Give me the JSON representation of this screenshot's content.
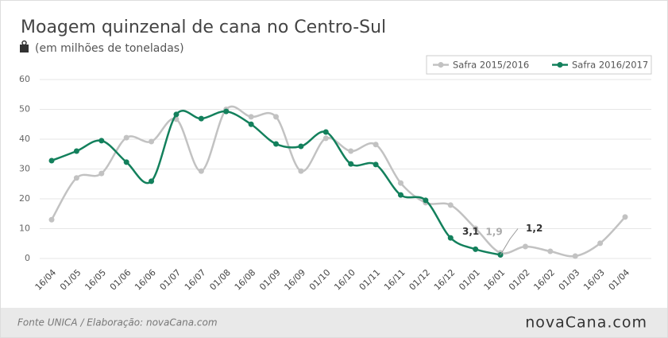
{
  "chart_data": {
    "type": "line",
    "title": "Moagem quinzenal de cana no Centro-Sul",
    "subtitle": "(em milhões de toneladas)",
    "source": "Fonte UNICA / Elaboração: novaCana.com",
    "logo": "novaCana.com",
    "categories": [
      "16/04",
      "01/05",
      "16/05",
      "01/06",
      "16/06",
      "01/07",
      "16/07",
      "01/08",
      "16/08",
      "01/09",
      "16/09",
      "01/10",
      "16/10",
      "01/11",
      "16/11",
      "01/12",
      "16/12",
      "01/01",
      "16/01",
      "01/02",
      "16/02",
      "01/03",
      "16/03",
      "01/04"
    ],
    "series": [
      {
        "name": "Safra 2015/2016",
        "color": "#c2c2c2",
        "values": [
          13,
          27,
          28.5,
          40.5,
          39.2,
          46.7,
          29.3,
          50,
          47.5,
          47.5,
          29.3,
          40.3,
          36,
          38.2,
          25.3,
          18.7,
          17.9,
          10.1,
          1.9,
          4,
          2.4,
          0.8,
          5.1,
          13.9
        ],
        "value_labels": [
          null,
          null,
          null,
          null,
          null,
          null,
          null,
          null,
          null,
          null,
          null,
          null,
          null,
          null,
          null,
          null,
          null,
          null,
          "1,9",
          null,
          null,
          null,
          null,
          null
        ]
      },
      {
        "name": "Safra 2016/2017",
        "color": "#13805c",
        "values": [
          32.8,
          36,
          39.5,
          32.3,
          25.9,
          48.3,
          46.9,
          49.3,
          45,
          38.4,
          37.6,
          42.4,
          31.7,
          31.5,
          21.3,
          19.5,
          6.9,
          3.1,
          1.2,
          null,
          null,
          null,
          null,
          null
        ],
        "value_labels": [
          null,
          null,
          null,
          null,
          null,
          null,
          null,
          null,
          null,
          null,
          null,
          null,
          null,
          null,
          null,
          null,
          null,
          "3,1",
          "1,2",
          null,
          null,
          null,
          null,
          null
        ]
      }
    ],
    "ylim": [
      0,
      60
    ],
    "yticks": [
      0,
      10,
      20,
      30,
      40,
      50,
      60
    ],
    "grid": true,
    "legend": "top-right"
  }
}
